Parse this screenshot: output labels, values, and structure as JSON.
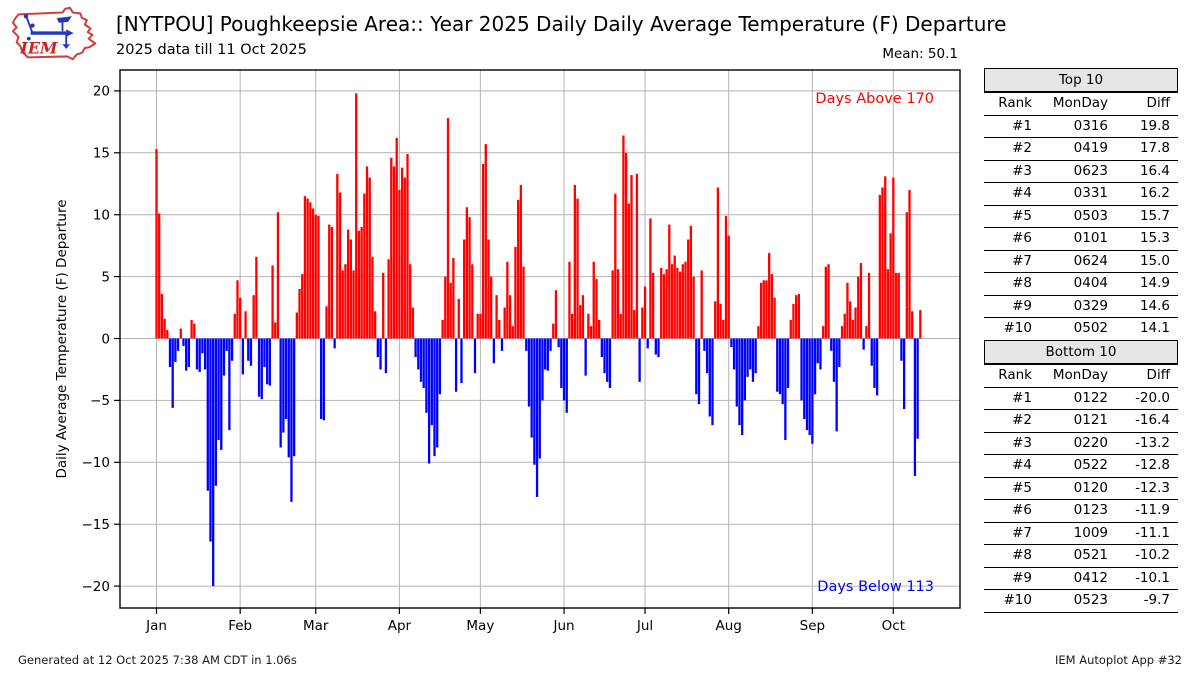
{
  "header": {
    "title": "[NYTPOU] Poughkeepsie Area:: Year 2025 Daily Daily Average Temperature (F) Departure",
    "subtitle": "2025 data till 11 Oct 2025",
    "mean_label": "Mean: 50.1",
    "logo_text": "IEM"
  },
  "chart_data": {
    "type": "bar",
    "title": "[NYTPOU] Poughkeepsie Area:: Year 2025 Daily Daily Average Temperature (F) Departure",
    "subtitle": "2025 data till 11 Oct 2025",
    "ylabel": "Daily Average Temperature (F) Departure",
    "xlabel": "",
    "ylim": [
      -21.7,
      21.7
    ],
    "yticks": [
      20,
      15,
      10,
      5,
      0,
      -5,
      -10,
      -15,
      -20
    ],
    "grid": "on",
    "mean": 50.1,
    "days_above": 170,
    "days_below": 113,
    "annotations": {
      "above": "Days Above 170",
      "below": "Days Below 113"
    },
    "colors": {
      "positive": "#ff0000",
      "negative": "#0000ff",
      "grid": "#b4b4b4",
      "frame": "#000000"
    },
    "x_months": [
      "Jan",
      "Feb",
      "Mar",
      "Apr",
      "May",
      "Jun",
      "Jul",
      "Aug",
      "Sep",
      "Oct"
    ],
    "month_day_offsets": [
      0,
      31,
      59,
      90,
      120,
      151,
      181,
      212,
      243,
      273
    ],
    "daily_departures": {
      "Jan": [
        15.3,
        10.1,
        3.6,
        1.6,
        0.7,
        -2.3,
        -5.6,
        -1.9,
        -1.0,
        0.8,
        -0.6,
        -2.6,
        -2.3,
        1.5,
        1.2,
        -2.5,
        -2.7,
        -1.2,
        -2.5,
        -12.3,
        -16.4,
        -20.0,
        -11.9,
        -8.2,
        -9.0,
        -3.0,
        -1.0,
        -7.4,
        -1.8,
        2.0,
        4.7
      ],
      "Feb": [
        3.3,
        -2.9,
        2.2,
        -1.8,
        -2.2,
        3.5,
        6.6,
        -4.7,
        -4.9,
        -2.3,
        -3.7,
        -3.8,
        5.9,
        1.3,
        10.2,
        -8.8,
        -7.6,
        -6.5,
        -9.6,
        -13.2,
        -9.5,
        2.1,
        4.0,
        5.2,
        11.5,
        11.3,
        11.0,
        10.5
      ],
      "Mar": [
        10.0,
        9.9,
        -6.5,
        -6.6,
        2.6,
        9.2,
        9.0,
        -0.8,
        13.3,
        11.8,
        5.5,
        6.0,
        8.8,
        8.0,
        5.5,
        19.8,
        8.7,
        9.0,
        11.7,
        13.9,
        13.0,
        6.6,
        2.2,
        -1.5,
        -2.5,
        5.3,
        -2.8,
        6.4,
        14.6,
        13.9,
        16.2
      ],
      "Apr": [
        12.0,
        13.8,
        13.0,
        14.9,
        6.0,
        2.5,
        -1.5,
        -2.5,
        -3.5,
        -4.0,
        -6.0,
        -10.1,
        -7.0,
        -9.5,
        -8.8,
        -4.5,
        1.5,
        5.0,
        17.8,
        4.5,
        6.5,
        -4.3,
        3.2,
        -3.6,
        8.0,
        10.6,
        9.8,
        6.0,
        -2.8,
        2.0
      ],
      "May": [
        2.0,
        14.1,
        15.7,
        8.0,
        5.0,
        -2.0,
        3.5,
        1.5,
        -1.0,
        2.5,
        6.2,
        3.5,
        1.0,
        7.4,
        11.2,
        12.4,
        5.8,
        -1.0,
        -5.5,
        -8.0,
        -10.2,
        -12.8,
        -9.7,
        -5.0,
        -2.5,
        -2.6,
        -1.0,
        1.2,
        3.9,
        -0.7,
        -4.0
      ],
      "Jun": [
        -5.0,
        -6.0,
        6.2,
        2.0,
        12.4,
        11.3,
        2.7,
        3.5,
        -3.0,
        2.0,
        1.0,
        6.2,
        4.8,
        1.5,
        -1.5,
        -2.8,
        -3.5,
        -4.0,
        5.5,
        11.7,
        5.6,
        2.0,
        16.4,
        15.0,
        10.9,
        13.2,
        2.3,
        13.3,
        -3.5,
        2.5
      ],
      "Jul": [
        4.2,
        -0.8,
        9.7,
        5.3,
        -1.3,
        -1.5,
        5.7,
        5.2,
        5.6,
        9.2,
        6.0,
        6.7,
        5.7,
        5.4,
        6.0,
        6.2,
        8.0,
        9.1,
        5.0,
        -4.5,
        -5.3,
        5.5,
        -1.0,
        -2.8,
        -6.3,
        -7.0,
        3.0,
        12.2,
        2.8,
        1.5,
        9.9
      ],
      "Aug": [
        8.3,
        -0.7,
        -2.5,
        -5.5,
        -7.0,
        -7.8,
        -5.0,
        -3.1,
        -2.5,
        -3.5,
        -2.8,
        1.0,
        4.5,
        4.7,
        4.7,
        6.9,
        5.2,
        3.3,
        -4.3,
        -4.5,
        -5.3,
        -8.2,
        -4.0,
        1.5,
        2.8,
        3.5,
        3.6,
        -5.0,
        -6.5,
        -7.4,
        -7.8
      ],
      "Sep": [
        -8.5,
        -4.5,
        -2.0,
        -2.5,
        1.0,
        5.8,
        6.0,
        -1.0,
        -3.5,
        -7.5,
        -2.3,
        1.0,
        2.0,
        4.5,
        3.0,
        1.5,
        2.5,
        5.0,
        6.1,
        -0.9,
        1.0,
        5.3,
        -2.2,
        -4.0,
        -4.6,
        11.6,
        12.2,
        13.1,
        5.6,
        8.5
      ],
      "Oct": [
        13.0,
        5.3,
        5.3,
        -1.8,
        -5.7,
        10.2,
        12.0,
        2.2,
        -11.1,
        -8.1,
        2.3
      ]
    }
  },
  "tables": {
    "top10": {
      "title": "Top 10",
      "columns": [
        "Rank",
        "MonDay",
        "Diff"
      ],
      "rows": [
        [
          "#1",
          "0316",
          "19.8"
        ],
        [
          "#2",
          "0419",
          "17.8"
        ],
        [
          "#3",
          "0623",
          "16.4"
        ],
        [
          "#4",
          "0331",
          "16.2"
        ],
        [
          "#5",
          "0503",
          "15.7"
        ],
        [
          "#6",
          "0101",
          "15.3"
        ],
        [
          "#7",
          "0624",
          "15.0"
        ],
        [
          "#8",
          "0404",
          "14.9"
        ],
        [
          "#9",
          "0329",
          "14.6"
        ],
        [
          "#10",
          "0502",
          "14.1"
        ]
      ]
    },
    "bottom10": {
      "title": "Bottom 10",
      "columns": [
        "Rank",
        "MonDay",
        "Diff"
      ],
      "rows": [
        [
          "#1",
          "0122",
          "-20.0"
        ],
        [
          "#2",
          "0121",
          "-16.4"
        ],
        [
          "#3",
          "0220",
          "-13.2"
        ],
        [
          "#4",
          "0522",
          "-12.8"
        ],
        [
          "#5",
          "0120",
          "-12.3"
        ],
        [
          "#6",
          "0123",
          "-11.9"
        ],
        [
          "#7",
          "1009",
          "-11.1"
        ],
        [
          "#8",
          "0521",
          "-10.2"
        ],
        [
          "#9",
          "0412",
          "-10.1"
        ],
        [
          "#10",
          "0523",
          "-9.7"
        ]
      ]
    }
  },
  "footer": {
    "left": "Generated at 12 Oct 2025 7:38 AM CDT in 1.06s",
    "right": "IEM Autoplot App #32"
  }
}
